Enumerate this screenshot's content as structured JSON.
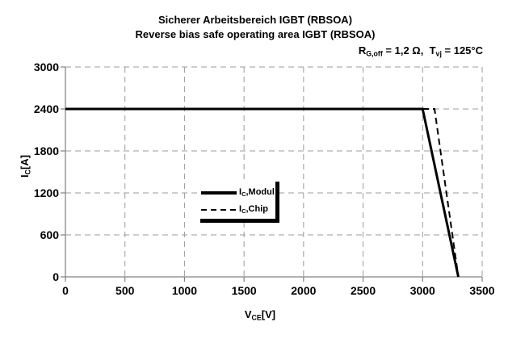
{
  "chart_data": {
    "type": "line",
    "title": "Sicherer Arbeitsbereich IGBT (RBSOA)",
    "subtitle": "Reverse bias safe operating area IGBT (RBSOA)",
    "annotation": {
      "r_base": "R",
      "r_sub": "G,off",
      "mid": " = 1,2 Ω,  ",
      "t_base": "T",
      "t_sub": "vj",
      "end": " = 125°C"
    },
    "xlabel": {
      "base": "V",
      "sub": "CE",
      "unit": "[V]"
    },
    "ylabel": {
      "base": "I",
      "sub": "C",
      "unit": "[A]"
    },
    "xlim": [
      0,
      3500
    ],
    "ylim": [
      0,
      3000
    ],
    "xticks": [
      0,
      500,
      1000,
      1500,
      2000,
      2500,
      3000,
      3500
    ],
    "yticks": [
      0,
      600,
      1200,
      1800,
      2400,
      3000
    ],
    "grid": {
      "style": "dashed",
      "color": "#9b9b9b",
      "dash": "7 5"
    },
    "axis_color": "#808080",
    "series": [
      {
        "name": "IC,Modul",
        "style": "solid",
        "color": "#000000",
        "stroke_width": 3,
        "points": [
          [
            0,
            2400
          ],
          [
            3000,
            2400
          ],
          [
            3300,
            0
          ]
        ]
      },
      {
        "name": "IC,Chip",
        "style": "dashed",
        "color": "#000000",
        "stroke_width": 2,
        "dash": "8 5",
        "points": [
          [
            0,
            2400
          ],
          [
            3100,
            2400
          ],
          [
            3300,
            0
          ]
        ]
      }
    ],
    "legend": {
      "position": "center",
      "items": [
        {
          "base": "I",
          "sub": "C",
          "rest": ",Modul"
        },
        {
          "base": "I",
          "sub": "C",
          "rest": ",Chip"
        }
      ]
    }
  }
}
